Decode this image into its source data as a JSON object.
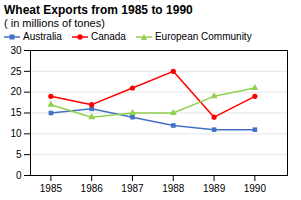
{
  "chart_data": {
    "type": "line",
    "title": "Wheat Exports from 1985 to 1990",
    "subtitle": "( in millions of tones)",
    "x": [
      1985,
      1986,
      1987,
      1988,
      1989,
      1990
    ],
    "series": [
      {
        "name": "Australia",
        "color": "#4472C4",
        "marker": "square",
        "values": [
          15,
          16,
          14,
          12,
          11,
          11
        ]
      },
      {
        "name": "Canada",
        "color": "#FF0000",
        "marker": "circle",
        "values": [
          19,
          17,
          21,
          25,
          14,
          19
        ]
      },
      {
        "name": "European Community",
        "color": "#92D050",
        "marker": "triangle",
        "values": [
          17,
          14,
          15,
          15,
          19,
          21
        ]
      }
    ],
    "xlim": [
      1984.5,
      1990.8
    ],
    "xticks": [
      1985,
      1986,
      1987,
      1988,
      1989,
      1990
    ],
    "ylim": [
      0,
      30
    ],
    "yticks": [
      0,
      5,
      10,
      15,
      20,
      25,
      30
    ],
    "grid": "y",
    "legend": "upper left"
  }
}
